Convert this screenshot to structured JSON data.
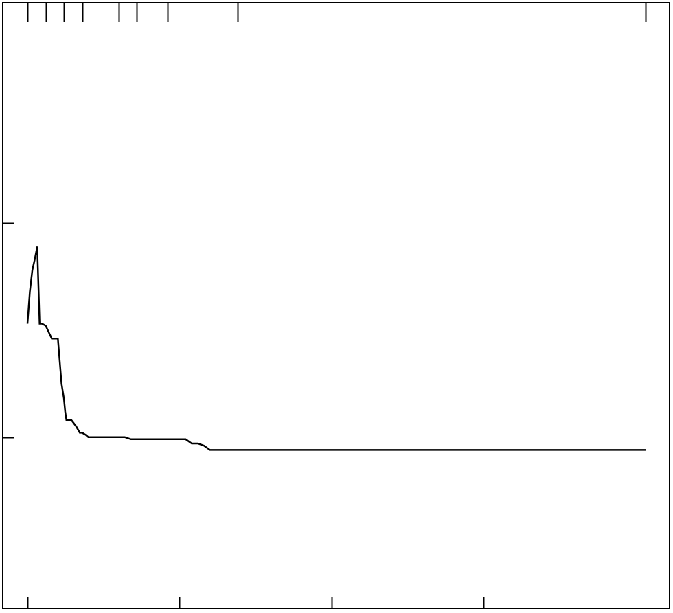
{
  "chart_data": {
    "type": "line",
    "title": "",
    "xlabel": "",
    "ylabel": "",
    "xlim": [
      0,
      1016
    ],
    "ylim": [
      0,
      28.3
    ],
    "grid": false,
    "legend": "none",
    "line_color": "#000000",
    "bottom_ticks": [
      0,
      250,
      500,
      750
    ],
    "top_ticks": [
      0,
      30,
      60,
      90,
      150,
      180,
      230,
      346,
      1016
    ],
    "left_ticks": [
      8,
      18
    ],
    "series": [
      {
        "name": "",
        "x": [
          0,
          4,
          8,
          12,
          16,
          20,
          24,
          30,
          40,
          50,
          56,
          60,
          62,
          64,
          66,
          72,
          80,
          86,
          90,
          96,
          100,
          120,
          126,
          130,
          140,
          160,
          170,
          180,
          200,
          210,
          230,
          250,
          260,
          270,
          280,
          290,
          300,
          310,
          350,
          500,
          750,
          1016
        ],
        "y": [
          13.3,
          14.8,
          15.8,
          16.3,
          16.9,
          13.3,
          13.3,
          13.2,
          12.6,
          12.6,
          10.5,
          9.8,
          9.2,
          8.8,
          8.8,
          8.8,
          8.5,
          8.2,
          8.2,
          8.1,
          8.0,
          8.0,
          8.0,
          8.0,
          8.0,
          8.0,
          7.9,
          7.9,
          7.9,
          7.9,
          7.9,
          7.9,
          7.9,
          7.7,
          7.7,
          7.6,
          7.4,
          7.4,
          7.4,
          7.4,
          7.4,
          7.4
        ]
      }
    ]
  }
}
